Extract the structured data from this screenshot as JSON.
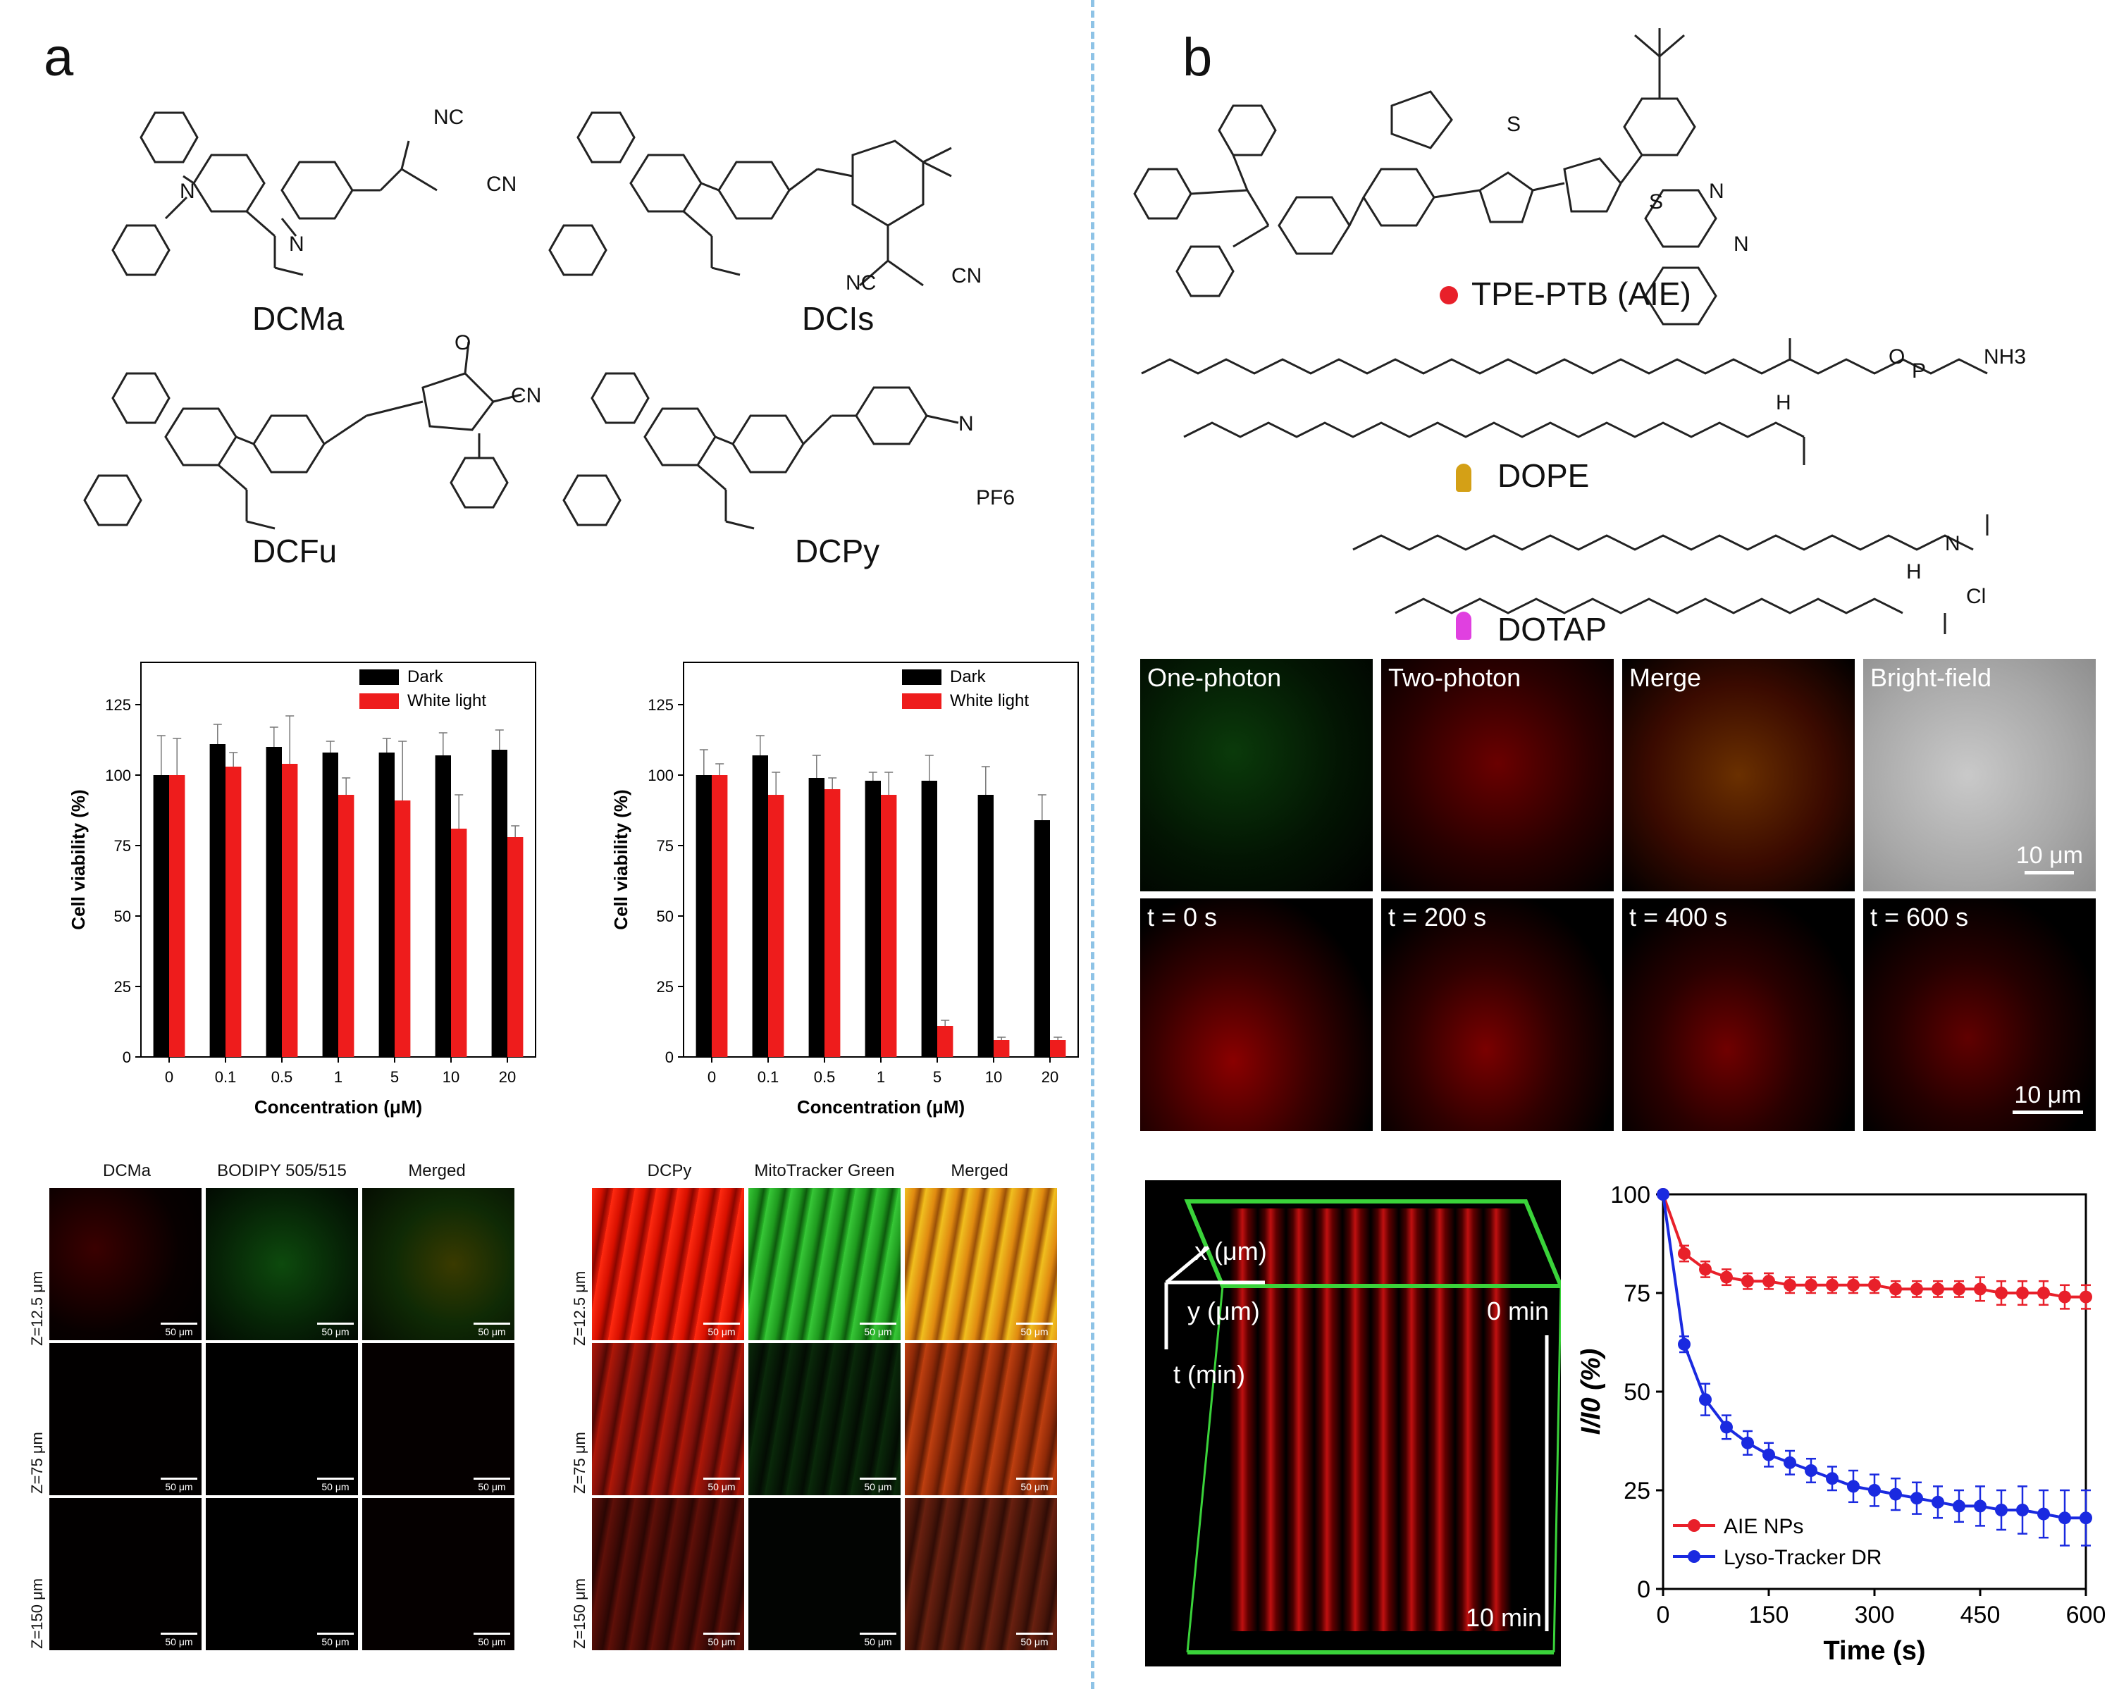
{
  "panel_a": {
    "letter": "a",
    "compounds": [
      "DCMa",
      "DCIs",
      "DCFu",
      "DCPy"
    ],
    "atoms": {
      "nc": "NC",
      "cn": "CN",
      "n": "N",
      "o": "O",
      "pf6": "PF6",
      "minus": "−",
      "plus": "+"
    }
  },
  "panel_b": {
    "letter": "b",
    "compounds": {
      "tpe": "TPE-PTB (AIE)",
      "dope": "DOPE",
      "dotap": "DOTAP"
    },
    "atoms": {
      "s": "S",
      "n": "N",
      "o": "O",
      "p": "P",
      "h": "H",
      "nh3": "NH3",
      "cl": "Cl"
    },
    "micro_top": [
      "One-photon",
      "Two-photon",
      "Merge",
      "Bright-field"
    ],
    "micro_time": [
      "t = 0 s",
      "t = 200 s",
      "t = 400 s",
      "t = 600 s"
    ],
    "scale_label": "10 μm",
    "stack3d": {
      "x": "x (μm)",
      "y": "y (μm)",
      "t": "t (min)",
      "t0": "0 min",
      "t1": "10 min"
    }
  },
  "tissue_left": {
    "cols": [
      "DCMa",
      "BODIPY 505/515",
      "Merged"
    ],
    "rows": [
      "Z=12.5 μm",
      "Z=75 μm",
      "Z=150 μm"
    ],
    "scale": "50 μm"
  },
  "tissue_right": {
    "cols": [
      "DCPy",
      "MitoTracker Green",
      "Merged"
    ],
    "rows": [
      "Z=12.5 μm",
      "Z=75 μm",
      "Z=150 μm"
    ],
    "scale": "50 μm"
  },
  "colors": {
    "dark": "#000000",
    "white_light": "#ee1c1c",
    "aie": "#e8202a",
    "lyso": "#1a2ae0",
    "divider": "#8ec3e6"
  },
  "chart_data": [
    {
      "type": "bar",
      "categories": [
        "0",
        "0.1",
        "0.5",
        "1",
        "5",
        "10",
        "20"
      ],
      "series": [
        {
          "name": "Dark",
          "values": [
            100,
            111,
            110,
            108,
            108,
            107,
            109
          ],
          "errors": [
            14,
            7,
            7,
            4,
            5,
            8,
            7
          ]
        },
        {
          "name": "White light",
          "values": [
            100,
            103,
            104,
            93,
            91,
            81,
            78
          ],
          "errors": [
            13,
            5,
            17,
            6,
            21,
            12,
            4
          ]
        }
      ],
      "xlabel": "Concentration (μM)",
      "ylabel": "Cell viability (%)",
      "ylim": [
        0,
        140
      ],
      "yticks": [
        0,
        25,
        50,
        75,
        100,
        125
      ],
      "legend": "top-right"
    },
    {
      "type": "bar",
      "categories": [
        "0",
        "0.1",
        "0.5",
        "1",
        "5",
        "10",
        "20"
      ],
      "series": [
        {
          "name": "Dark",
          "values": [
            100,
            107,
            99,
            98,
            98,
            93,
            84
          ],
          "errors": [
            9,
            7,
            8,
            3,
            9,
            10,
            9
          ]
        },
        {
          "name": "White light",
          "values": [
            100,
            93,
            95,
            93,
            11,
            6,
            6
          ],
          "errors": [
            4,
            8,
            4,
            8,
            2,
            1,
            1
          ]
        }
      ],
      "xlabel": "Concentration (μM)",
      "ylabel": "Cell viability (%)",
      "ylim": [
        0,
        140
      ],
      "yticks": [
        0,
        25,
        50,
        75,
        100,
        125
      ],
      "legend": "top-right"
    },
    {
      "type": "line",
      "series": [
        {
          "name": "AIE NPs",
          "x": [
            0,
            30,
            60,
            90,
            120,
            150,
            180,
            210,
            240,
            270,
            300,
            330,
            360,
            390,
            420,
            450,
            480,
            510,
            540,
            570,
            600
          ],
          "y": [
            100,
            85,
            81,
            79,
            78,
            78,
            77,
            77,
            77,
            77,
            77,
            76,
            76,
            76,
            76,
            76,
            75,
            75,
            75,
            74,
            74
          ],
          "err": [
            0,
            2,
            2,
            2,
            2,
            2,
            2,
            2,
            2,
            2,
            2,
            2,
            2,
            2,
            2,
            3,
            3,
            3,
            3,
            3,
            3
          ]
        },
        {
          "name": "Lyso-Tracker DR",
          "x": [
            0,
            30,
            60,
            90,
            120,
            150,
            180,
            210,
            240,
            270,
            300,
            330,
            360,
            390,
            420,
            450,
            480,
            510,
            540,
            570,
            600
          ],
          "y": [
            100,
            62,
            48,
            41,
            37,
            34,
            32,
            30,
            28,
            26,
            25,
            24,
            23,
            22,
            21,
            21,
            20,
            20,
            19,
            18,
            18
          ],
          "err": [
            0,
            2,
            4,
            3,
            3,
            3,
            3,
            3,
            3,
            4,
            4,
            4,
            4,
            4,
            4,
            5,
            5,
            6,
            6,
            7,
            7
          ]
        }
      ],
      "xlabel": "Time (s)",
      "ylabel": "I/I0 (%)",
      "xlim": [
        0,
        600
      ],
      "ylim": [
        0,
        100
      ],
      "xticks": [
        0,
        150,
        300,
        450,
        600
      ],
      "yticks": [
        0,
        25,
        50,
        75,
        100
      ],
      "legend": "bottom-left"
    }
  ]
}
